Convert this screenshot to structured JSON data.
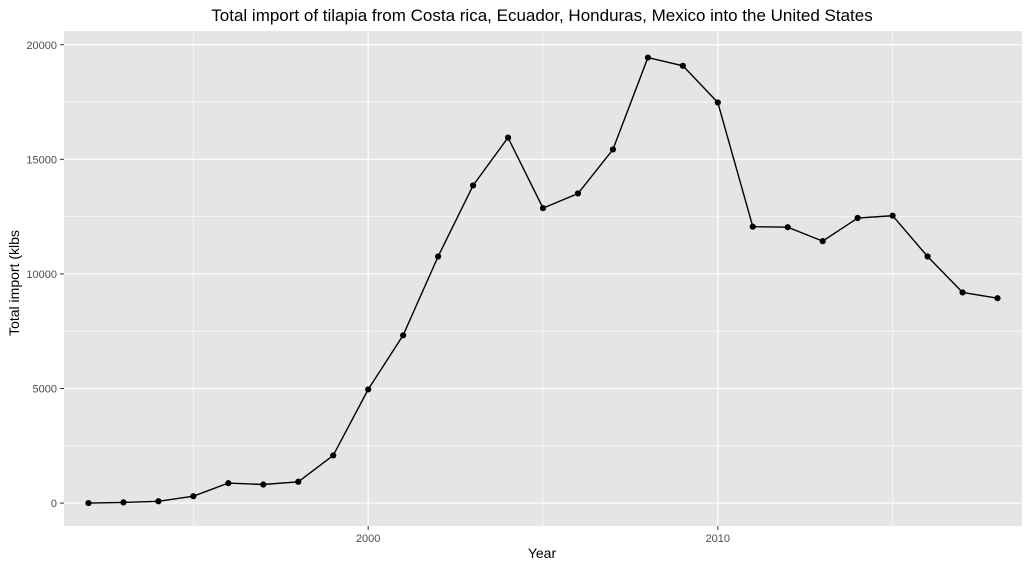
{
  "chart_data": {
    "type": "line",
    "title": "Total import of tilapia from Costa rica, Ecuador, Honduras, Mexico into the United States",
    "xlabel": "Year",
    "ylabel": "Total import (klbs",
    "xlim": [
      1991.3,
      2018.7
    ],
    "ylim": [
      -1000,
      20600
    ],
    "x_ticks": [
      2000,
      2010
    ],
    "y_ticks": [
      0,
      5000,
      10000,
      15000,
      20000
    ],
    "grid": true,
    "series": [
      {
        "x": [
          1992,
          1993,
          1994,
          1995,
          1996,
          1997,
          1998,
          1999,
          2000,
          2001,
          2002,
          2003,
          2004,
          2005,
          2006,
          2007,
          2008,
          2009,
          2010,
          2011,
          2012,
          2013,
          2014,
          2015,
          2016,
          2017,
          2018
        ],
        "values": [
          0,
          30,
          80,
          300,
          870,
          810,
          930,
          2080,
          4960,
          7320,
          10760,
          13860,
          15950,
          12870,
          13510,
          15430,
          19440,
          19080,
          17480,
          12060,
          12040,
          11430,
          12440,
          12540,
          10760,
          9190,
          8940
        ]
      }
    ],
    "colors": {
      "panel": "#e5e5e5",
      "gridline": "#ffffff",
      "line": "#000000",
      "point": "#000000"
    }
  }
}
